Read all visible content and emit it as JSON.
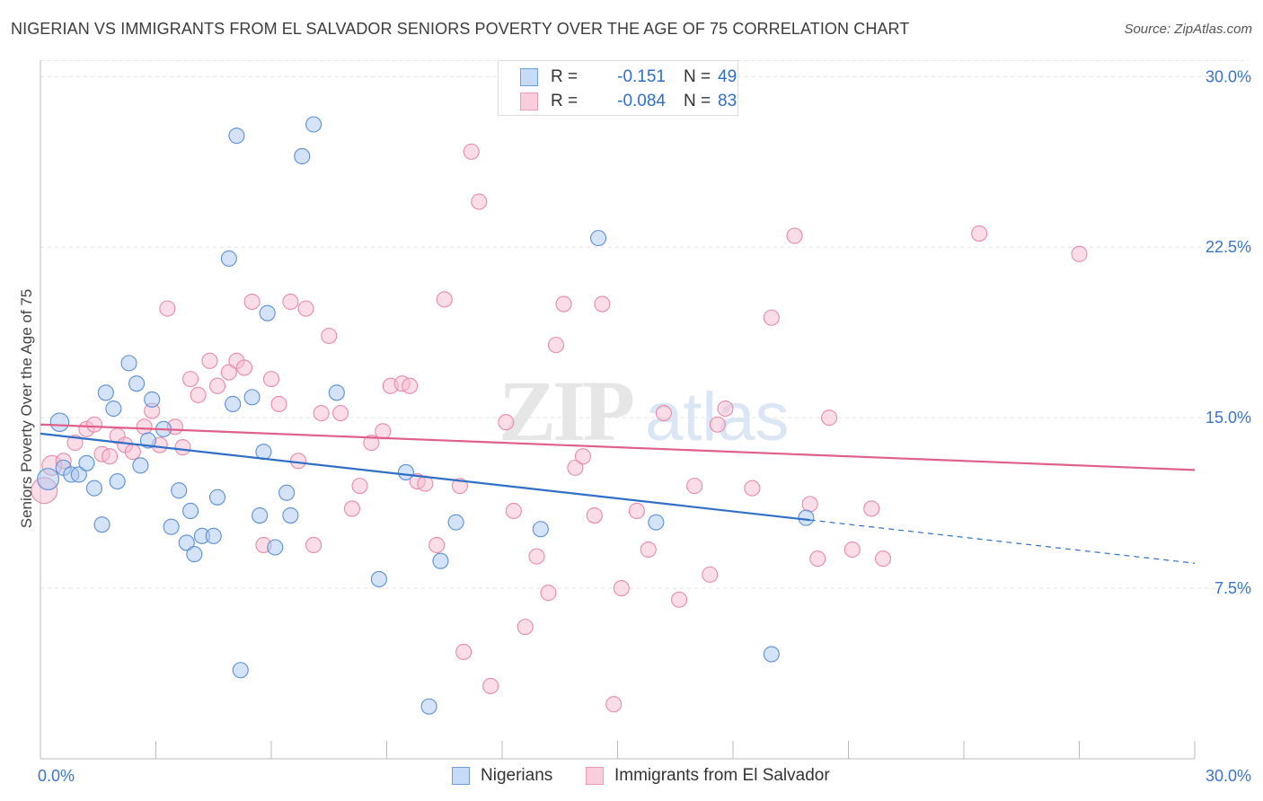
{
  "title": "NIGERIAN VS IMMIGRANTS FROM EL SALVADOR SENIORS POVERTY OVER THE AGE OF 75 CORRELATION CHART",
  "source": "Source: ZipAtlas.com",
  "watermark": {
    "zip": "ZIP",
    "atlas": "atlas"
  },
  "colors": {
    "blue_fill": "#aac8f0",
    "blue_stroke": "#5b8fd6",
    "blue_line": "#2f6fc8",
    "pink_fill": "#f7bcd0",
    "pink_stroke": "#e88aa8",
    "pink_line": "#e0608a",
    "tick_label": "#3a74c8",
    "grid": "#e3e3e3"
  },
  "legend": {
    "rows": [
      {
        "r_label": "R =",
        "r_value": "-0.151",
        "n_label": "N =",
        "n_value": "49",
        "series": "blue"
      },
      {
        "r_label": "R =",
        "r_value": "-0.084",
        "n_label": "N =",
        "n_value": "83",
        "series": "pink"
      }
    ]
  },
  "bottom_legend": [
    {
      "label": "Nigerians",
      "series": "blue"
    },
    {
      "label": "Immigrants from El Salvador",
      "series": "pink"
    }
  ],
  "chart_data": {
    "type": "scatter",
    "title": "NIGERIAN VS IMMIGRANTS FROM EL SALVADOR SENIORS POVERTY OVER THE AGE OF 75 CORRELATION CHART",
    "xlabel": "",
    "ylabel": "Seniors Poverty Over the Age of 75",
    "xlim": [
      0,
      30
    ],
    "ylim": [
      0,
      31
    ],
    "x_tick_labels": [
      {
        "value": 0,
        "label": "0.0%"
      },
      {
        "value": 30,
        "label": "30.0%"
      }
    ],
    "y_tick_labels": [
      {
        "value": 7.5,
        "label": "7.5%"
      },
      {
        "value": 15,
        "label": "15.0%"
      },
      {
        "value": 22.5,
        "label": "22.5%"
      },
      {
        "value": 30,
        "label": "30.0%"
      }
    ],
    "grid": "horizontal dashed",
    "legend_position": "top-center",
    "series": [
      {
        "name": "Nigerians",
        "color": "#aac8f0",
        "r": -0.151,
        "n": 49,
        "trend": {
          "x": [
            0,
            20
          ],
          "y": [
            14.3,
            10.5
          ]
        },
        "trend_dashed": {
          "x": [
            20,
            30
          ],
          "y": [
            10.5,
            8.6
          ]
        },
        "points": [
          {
            "x": 0.2,
            "y": 12.3,
            "s": 1.4
          },
          {
            "x": 0.5,
            "y": 14.8,
            "s": 1.2
          },
          {
            "x": 0.6,
            "y": 12.8
          },
          {
            "x": 0.8,
            "y": 12.5
          },
          {
            "x": 1.0,
            "y": 12.5
          },
          {
            "x": 1.2,
            "y": 13.0
          },
          {
            "x": 1.4,
            "y": 11.9
          },
          {
            "x": 1.6,
            "y": 10.3
          },
          {
            "x": 1.7,
            "y": 16.1
          },
          {
            "x": 1.9,
            "y": 15.4
          },
          {
            "x": 2.0,
            "y": 12.2
          },
          {
            "x": 2.3,
            "y": 17.4
          },
          {
            "x": 2.5,
            "y": 16.5
          },
          {
            "x": 2.6,
            "y": 12.9
          },
          {
            "x": 2.8,
            "y": 14.0
          },
          {
            "x": 2.9,
            "y": 15.8
          },
          {
            "x": 3.2,
            "y": 14.5
          },
          {
            "x": 3.4,
            "y": 10.2
          },
          {
            "x": 3.6,
            "y": 11.8
          },
          {
            "x": 3.8,
            "y": 9.5
          },
          {
            "x": 3.9,
            "y": 10.9
          },
          {
            "x": 4.0,
            "y": 9.0
          },
          {
            "x": 4.2,
            "y": 9.8
          },
          {
            "x": 4.5,
            "y": 9.8
          },
          {
            "x": 4.6,
            "y": 11.5
          },
          {
            "x": 4.9,
            "y": 22.0
          },
          {
            "x": 5.0,
            "y": 15.6
          },
          {
            "x": 5.1,
            "y": 27.4
          },
          {
            "x": 5.2,
            "y": 3.9
          },
          {
            "x": 5.5,
            "y": 15.9
          },
          {
            "x": 5.7,
            "y": 10.7
          },
          {
            "x": 5.8,
            "y": 13.5
          },
          {
            "x": 5.9,
            "y": 19.6
          },
          {
            "x": 6.1,
            "y": 9.3
          },
          {
            "x": 6.4,
            "y": 11.7
          },
          {
            "x": 6.5,
            "y": 10.7
          },
          {
            "x": 6.8,
            "y": 26.5
          },
          {
            "x": 7.1,
            "y": 27.9
          },
          {
            "x": 7.7,
            "y": 16.1
          },
          {
            "x": 8.8,
            "y": 7.9
          },
          {
            "x": 9.5,
            "y": 12.6
          },
          {
            "x": 10.1,
            "y": 2.3
          },
          {
            "x": 10.4,
            "y": 8.7
          },
          {
            "x": 10.8,
            "y": 10.4
          },
          {
            "x": 13.0,
            "y": 10.1
          },
          {
            "x": 14.5,
            "y": 22.9
          },
          {
            "x": 16.0,
            "y": 10.4
          },
          {
            "x": 19.0,
            "y": 4.6
          },
          {
            "x": 19.9,
            "y": 10.6
          }
        ]
      },
      {
        "name": "Immigrants from El Salvador",
        "color": "#f7bcd0",
        "r": -0.084,
        "n": 83,
        "trend": {
          "x": [
            0,
            30
          ],
          "y": [
            14.7,
            12.7
          ]
        },
        "points": [
          {
            "x": 0.1,
            "y": 11.8,
            "s": 1.7
          },
          {
            "x": 0.3,
            "y": 12.9,
            "s": 1.3
          },
          {
            "x": 0.6,
            "y": 13.1
          },
          {
            "x": 0.9,
            "y": 13.9
          },
          {
            "x": 1.2,
            "y": 14.5
          },
          {
            "x": 1.4,
            "y": 14.7
          },
          {
            "x": 1.6,
            "y": 13.4
          },
          {
            "x": 1.8,
            "y": 13.3
          },
          {
            "x": 2.0,
            "y": 14.2
          },
          {
            "x": 2.2,
            "y": 13.8
          },
          {
            "x": 2.4,
            "y": 13.5
          },
          {
            "x": 2.7,
            "y": 14.6
          },
          {
            "x": 2.9,
            "y": 15.3
          },
          {
            "x": 3.1,
            "y": 13.8
          },
          {
            "x": 3.3,
            "y": 19.8
          },
          {
            "x": 3.5,
            "y": 14.6
          },
          {
            "x": 3.7,
            "y": 13.7
          },
          {
            "x": 3.9,
            "y": 16.7
          },
          {
            "x": 4.1,
            "y": 16.0
          },
          {
            "x": 4.4,
            "y": 17.5
          },
          {
            "x": 4.6,
            "y": 16.4
          },
          {
            "x": 4.9,
            "y": 17.0
          },
          {
            "x": 5.1,
            "y": 17.5
          },
          {
            "x": 5.3,
            "y": 17.2
          },
          {
            "x": 5.5,
            "y": 20.1
          },
          {
            "x": 5.8,
            "y": 9.4
          },
          {
            "x": 6.0,
            "y": 16.7
          },
          {
            "x": 6.2,
            "y": 15.6
          },
          {
            "x": 6.5,
            "y": 20.1
          },
          {
            "x": 6.7,
            "y": 13.1
          },
          {
            "x": 6.9,
            "y": 19.8
          },
          {
            "x": 7.1,
            "y": 9.4
          },
          {
            "x": 7.3,
            "y": 15.2
          },
          {
            "x": 7.5,
            "y": 18.6
          },
          {
            "x": 7.8,
            "y": 15.2
          },
          {
            "x": 8.1,
            "y": 11.0
          },
          {
            "x": 8.3,
            "y": 12.0
          },
          {
            "x": 8.6,
            "y": 13.9
          },
          {
            "x": 8.9,
            "y": 14.4
          },
          {
            "x": 9.1,
            "y": 16.4
          },
          {
            "x": 9.4,
            "y": 16.5
          },
          {
            "x": 9.6,
            "y": 16.4
          },
          {
            "x": 9.8,
            "y": 12.2
          },
          {
            "x": 10.0,
            "y": 12.1
          },
          {
            "x": 10.3,
            "y": 9.4
          },
          {
            "x": 10.5,
            "y": 20.2
          },
          {
            "x": 10.9,
            "y": 12.0
          },
          {
            "x": 11.2,
            "y": 26.7
          },
          {
            "x": 11.4,
            "y": 24.5
          },
          {
            "x": 11.0,
            "y": 4.7
          },
          {
            "x": 11.7,
            "y": 3.2
          },
          {
            "x": 12.1,
            "y": 14.8
          },
          {
            "x": 12.3,
            "y": 10.9
          },
          {
            "x": 12.6,
            "y": 5.8
          },
          {
            "x": 12.9,
            "y": 8.9
          },
          {
            "x": 13.2,
            "y": 7.3
          },
          {
            "x": 13.4,
            "y": 18.2
          },
          {
            "x": 13.6,
            "y": 20.0
          },
          {
            "x": 13.9,
            "y": 12.8
          },
          {
            "x": 14.1,
            "y": 13.3
          },
          {
            "x": 14.4,
            "y": 10.7
          },
          {
            "x": 14.6,
            "y": 20.0
          },
          {
            "x": 14.9,
            "y": 2.4
          },
          {
            "x": 15.1,
            "y": 7.5
          },
          {
            "x": 15.5,
            "y": 10.9
          },
          {
            "x": 15.8,
            "y": 9.2
          },
          {
            "x": 16.2,
            "y": 15.2
          },
          {
            "x": 16.6,
            "y": 7.0
          },
          {
            "x": 17.0,
            "y": 12.0
          },
          {
            "x": 17.4,
            "y": 8.1
          },
          {
            "x": 17.6,
            "y": 14.7
          },
          {
            "x": 17.8,
            "y": 15.4
          },
          {
            "x": 18.5,
            "y": 11.9
          },
          {
            "x": 19.0,
            "y": 19.4
          },
          {
            "x": 19.6,
            "y": 23.0
          },
          {
            "x": 20.0,
            "y": 11.2
          },
          {
            "x": 20.2,
            "y": 8.8
          },
          {
            "x": 20.5,
            "y": 15.0
          },
          {
            "x": 21.1,
            "y": 9.2
          },
          {
            "x": 21.6,
            "y": 11.0
          },
          {
            "x": 21.9,
            "y": 8.8
          },
          {
            "x": 24.4,
            "y": 23.1
          },
          {
            "x": 27.0,
            "y": 22.2
          }
        ]
      }
    ]
  }
}
